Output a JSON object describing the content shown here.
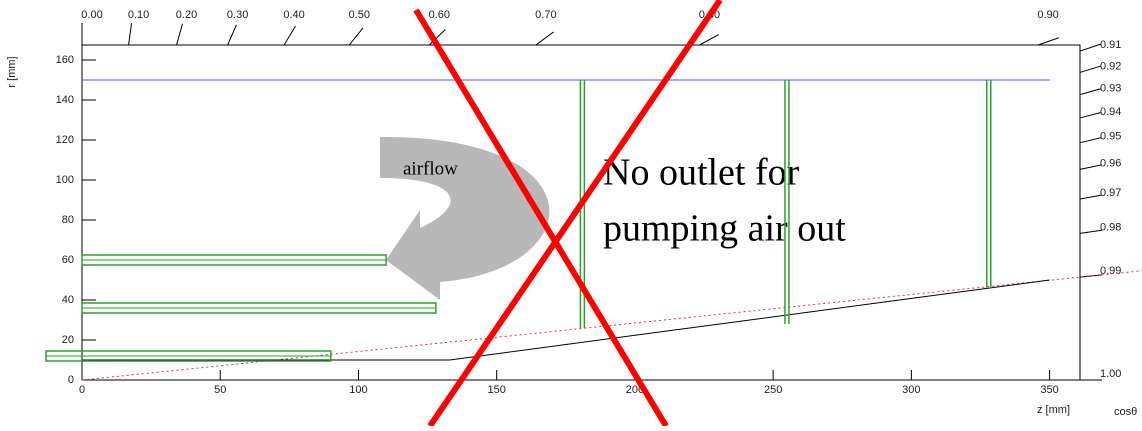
{
  "chart_data": {
    "type": "detector-layout",
    "x_label": "z [mm]",
    "y_label": "r [mm]",
    "cos_label": "cosθ",
    "xlim": [
      0,
      361
    ],
    "ylim": [
      0,
      167.5
    ],
    "xticks": [
      0,
      50,
      100,
      150,
      200,
      250,
      300,
      350
    ],
    "yticks": [
      0,
      20,
      40,
      60,
      80,
      100,
      120,
      140,
      160
    ],
    "cos_ticks": [
      {
        "value": 0,
        "label": "0.00"
      },
      {
        "value": 0.1,
        "label": "0.10"
      },
      {
        "value": 0.2,
        "label": "0.20"
      },
      {
        "value": 0.3,
        "label": "0.30"
      },
      {
        "value": 0.4,
        "label": "0.40"
      },
      {
        "value": 0.5,
        "label": "0.50"
      },
      {
        "value": 0.6,
        "label": "0.60"
      },
      {
        "value": 0.7,
        "label": "0.70"
      },
      {
        "value": 0.8,
        "label": "0.80"
      },
      {
        "value": 0.9,
        "label": "0.90"
      },
      0.91,
      0.92,
      0.93,
      0.94,
      0.95,
      0.96,
      0.97,
      0.98,
      0.99,
      {
        "value": 1,
        "label": "1.00"
      }
    ],
    "outer_radius": {
      "r": 150,
      "zmin": 0,
      "zmax": 350,
      "color": "#4a5ae8"
    },
    "barrel_layers": [
      {
        "r": 12,
        "zmin": -13,
        "zmax": 90
      },
      {
        "r": 36,
        "zmin": 0,
        "zmax": 128
      },
      {
        "r": 60,
        "zmin": 0,
        "zmax": 110
      }
    ],
    "disks": [
      {
        "z": 181,
        "rmin": 26,
        "rmax": 150
      },
      {
        "z": 255,
        "rmin": 28,
        "rmax": 150
      },
      {
        "z": 328,
        "rmin": 46,
        "rmax": 150
      }
    ],
    "layer_color": "#2ca02c",
    "beam_pipe": {
      "z": [
        0,
        133,
        350
      ],
      "r": [
        10,
        10,
        50
      ]
    },
    "acceptance_line": {
      "cos": 0.99,
      "color": "#e03030"
    },
    "annotations": {
      "airflow": "airflow",
      "note": [
        "No outlet for",
        "pumping air out"
      ]
    }
  }
}
